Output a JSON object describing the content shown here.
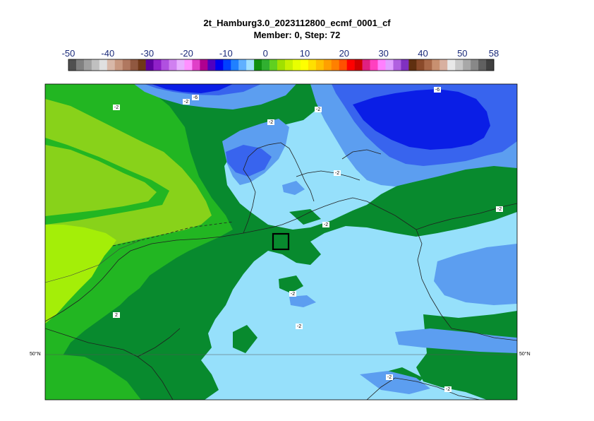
{
  "title": {
    "line1": "2t_Hamburg3.0_2023112800_ecmf_0001_cf",
    "line2": "Member: 0, Step: 72"
  },
  "colorbar": {
    "tick_labels": [
      "-50",
      "-40",
      "-30",
      "-20",
      "-10",
      "0",
      "10",
      "20",
      "30",
      "40",
      "50",
      "58"
    ],
    "tick_values": [
      -50,
      -40,
      -30,
      -20,
      -10,
      0,
      10,
      20,
      30,
      40,
      50,
      58
    ],
    "colors": [
      "#505050",
      "#808080",
      "#a0a0a0",
      "#c0c0c0",
      "#e0e0e0",
      "#d8b8a8",
      "#c89880",
      "#b07860",
      "#905840",
      "#703818",
      "#6000a0",
      "#9020c8",
      "#b050e0",
      "#d080f0",
      "#e8b0ff",
      "#ff90ff",
      "#e040c8",
      "#b00090",
      "#5000c0",
      "#0000f0",
      "#0040ff",
      "#2080ff",
      "#60b0ff",
      "#a0e0ff",
      "#109010",
      "#30b030",
      "#60d020",
      "#a0e000",
      "#c8f000",
      "#e8ff00",
      "#ffff00",
      "#ffe000",
      "#ffc000",
      "#ffa000",
      "#ff8000",
      "#ff5000",
      "#ff0000",
      "#d00000",
      "#e02080",
      "#ff40c0",
      "#ff80ff",
      "#e0a0ff",
      "#b060e0",
      "#8030c0",
      "#603010",
      "#8a4a2a",
      "#a86848",
      "#c89070",
      "#d8b0a0",
      "#e8e8e8",
      "#c8c8c8",
      "#a8a8a8",
      "#888888",
      "#606060",
      "#404040"
    ]
  },
  "map": {
    "latitude_label_left": "50°N",
    "latitude_label_right": "50°N",
    "colors": {
      "lime": "#a4ee08",
      "yellow_green": "#88d21a",
      "green": "#22b622",
      "dark_green": "#088a2e",
      "light_blue": "#96e0fb",
      "mid_blue": "#5c9ef0",
      "blue": "#3864ee",
      "deep_blue": "#0a1ee6",
      "hamburg_box": "#000000"
    },
    "contour_labels": [
      "-2",
      "-6",
      "-2",
      "-2",
      "-6",
      "-2",
      "-2",
      "-2",
      "-2",
      "-2",
      "2",
      "-2",
      "-2",
      "-2"
    ]
  }
}
